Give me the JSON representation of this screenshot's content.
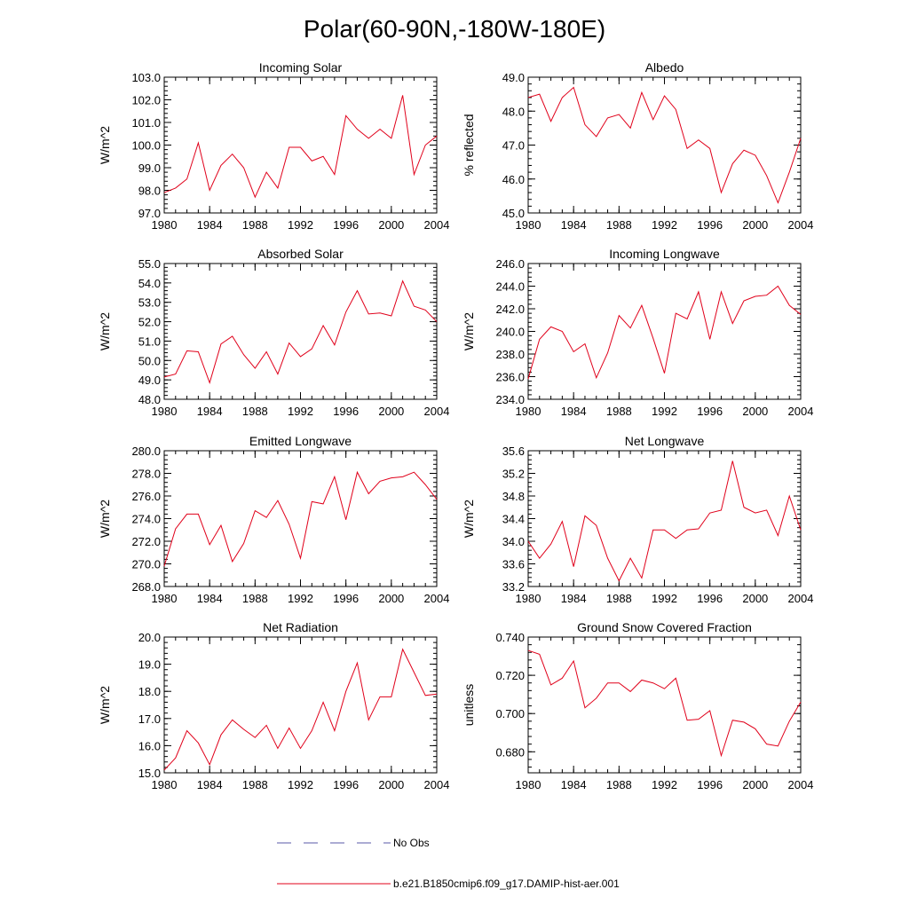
{
  "page": {
    "title": "Polar(60-90N,-180W-180E)"
  },
  "legend": {
    "entries": [
      {
        "label": "No Obs",
        "color": "#5a5aa8",
        "style": "dashed"
      },
      {
        "label": "b.e21.B1850cmip6.f09_g17.DAMIP-hist-aer.001",
        "color": "#e0001a",
        "style": "solid"
      }
    ]
  },
  "chart_data": [
    {
      "type": "line",
      "title": "Incoming Solar",
      "ylabel": "W/m^2",
      "xlim": [
        1980,
        2004
      ],
      "ylim": [
        97.0,
        103.0
      ],
      "xticks": [
        "1980",
        "1984",
        "1988",
        "1992",
        "1996",
        "2000",
        "2004"
      ],
      "yticks": [
        "97.0",
        "98.0",
        "99.0",
        "100.0",
        "101.0",
        "102.0",
        "103.0"
      ],
      "series": [
        {
          "color": "#e0001a",
          "x": [
            1980,
            1981,
            1982,
            1983,
            1984,
            1985,
            1986,
            1987,
            1988,
            1989,
            1990,
            1991,
            1992,
            1993,
            1994,
            1995,
            1996,
            1997,
            1998,
            1999,
            2000,
            2001,
            2002,
            2003,
            2004
          ],
          "values": [
            97.9,
            98.1,
            98.5,
            100.1,
            98.0,
            99.1,
            99.6,
            99.0,
            97.7,
            98.8,
            98.1,
            99.9,
            99.9,
            99.3,
            99.5,
            98.7,
            101.3,
            100.7,
            100.3,
            100.7,
            100.3,
            102.2,
            98.7,
            100.0,
            100.4
          ]
        }
      ]
    },
    {
      "type": "line",
      "title": "Albedo",
      "ylabel": "% reflected",
      "xlim": [
        1980,
        2004
      ],
      "ylim": [
        45.0,
        49.0
      ],
      "xticks": [
        "1980",
        "1984",
        "1988",
        "1992",
        "1996",
        "2000",
        "2004"
      ],
      "yticks": [
        "45.0",
        "46.0",
        "47.0",
        "48.0",
        "49.0"
      ],
      "series": [
        {
          "color": "#e0001a",
          "x": [
            1980,
            1981,
            1982,
            1983,
            1984,
            1985,
            1986,
            1987,
            1988,
            1989,
            1990,
            1991,
            1992,
            1993,
            1994,
            1995,
            1996,
            1997,
            1998,
            1999,
            2000,
            2001,
            2002,
            2003,
            2004
          ],
          "values": [
            48.4,
            48.5,
            47.7,
            48.4,
            48.7,
            47.6,
            47.25,
            47.8,
            47.9,
            47.5,
            48.55,
            47.75,
            48.45,
            48.05,
            46.9,
            47.15,
            46.9,
            45.6,
            46.45,
            46.85,
            46.7,
            46.1,
            45.3,
            46.2,
            47.2
          ]
        }
      ]
    },
    {
      "type": "line",
      "title": "Absorbed Solar",
      "ylabel": "W/m^2",
      "xlim": [
        1980,
        2004
      ],
      "ylim": [
        48.0,
        55.0
      ],
      "xticks": [
        "1980",
        "1984",
        "1988",
        "1992",
        "1996",
        "2000",
        "2004"
      ],
      "yticks": [
        "48.0",
        "49.0",
        "50.0",
        "51.0",
        "52.0",
        "53.0",
        "54.0",
        "55.0"
      ],
      "series": [
        {
          "color": "#e0001a",
          "x": [
            1980,
            1981,
            1982,
            1983,
            1984,
            1985,
            1986,
            1987,
            1988,
            1989,
            1990,
            1991,
            1992,
            1993,
            1994,
            1995,
            1996,
            1997,
            1998,
            1999,
            2000,
            2001,
            2002,
            2003,
            2004
          ],
          "values": [
            49.15,
            49.3,
            50.5,
            50.45,
            48.85,
            50.85,
            51.25,
            50.3,
            49.6,
            50.45,
            49.3,
            50.9,
            50.2,
            50.6,
            51.8,
            50.8,
            52.5,
            53.6,
            52.4,
            52.45,
            52.3,
            54.1,
            52.8,
            52.6,
            52.0
          ]
        }
      ]
    },
    {
      "type": "line",
      "title": "Incoming Longwave",
      "ylabel": "W/m^2",
      "xlim": [
        1980,
        2004
      ],
      "ylim": [
        234.0,
        246.0
      ],
      "xticks": [
        "1980",
        "1984",
        "1988",
        "1992",
        "1996",
        "2000",
        "2004"
      ],
      "yticks": [
        "234.0",
        "236.0",
        "238.0",
        "240.0",
        "242.0",
        "244.0",
        "246.0"
      ],
      "series": [
        {
          "color": "#e0001a",
          "x": [
            1980,
            1981,
            1982,
            1983,
            1984,
            1985,
            1986,
            1987,
            1988,
            1989,
            1990,
            1991,
            1992,
            1993,
            1994,
            1995,
            1996,
            1997,
            1998,
            1999,
            2000,
            2001,
            2002,
            2003,
            2004
          ],
          "values": [
            235.8,
            239.3,
            240.4,
            240.0,
            238.2,
            238.9,
            235.9,
            238.1,
            241.4,
            240.3,
            242.3,
            239.4,
            236.3,
            241.6,
            241.1,
            243.5,
            239.3,
            243.5,
            240.7,
            242.7,
            243.1,
            243.2,
            244.0,
            242.3,
            241.5
          ]
        }
      ]
    },
    {
      "type": "line",
      "title": "Emitted Longwave",
      "ylabel": "W/m^2",
      "xlim": [
        1980,
        2004
      ],
      "ylim": [
        268.0,
        280.0
      ],
      "xticks": [
        "1980",
        "1984",
        "1988",
        "1992",
        "1996",
        "2000",
        "2004"
      ],
      "yticks": [
        "268.0",
        "270.0",
        "272.0",
        "274.0",
        "276.0",
        "278.0",
        "280.0"
      ],
      "series": [
        {
          "color": "#e0001a",
          "x": [
            1980,
            1981,
            1982,
            1983,
            1984,
            1985,
            1986,
            1987,
            1988,
            1989,
            1990,
            1991,
            1992,
            1993,
            1994,
            1995,
            1996,
            1997,
            1998,
            1999,
            2000,
            2001,
            2002,
            2003,
            2004
          ],
          "values": [
            269.8,
            273.1,
            274.4,
            274.4,
            271.7,
            273.4,
            270.2,
            271.8,
            274.7,
            274.1,
            275.6,
            273.5,
            270.5,
            275.5,
            275.3,
            277.7,
            273.9,
            278.1,
            276.2,
            277.3,
            277.6,
            277.7,
            278.1,
            277.0,
            275.7
          ]
        }
      ]
    },
    {
      "type": "line",
      "title": "Net Longwave",
      "ylabel": "W/m^2",
      "xlim": [
        1980,
        2004
      ],
      "ylim": [
        33.2,
        35.6
      ],
      "xticks": [
        "1980",
        "1984",
        "1988",
        "1992",
        "1996",
        "2000",
        "2004"
      ],
      "yticks": [
        "33.2",
        "33.6",
        "34.0",
        "34.4",
        "34.8",
        "35.2",
        "35.6"
      ],
      "series": [
        {
          "color": "#e0001a",
          "x": [
            1980,
            1981,
            1982,
            1983,
            1984,
            1985,
            1986,
            1987,
            1988,
            1989,
            1990,
            1991,
            1992,
            1993,
            1994,
            1995,
            1996,
            1997,
            1998,
            1999,
            2000,
            2001,
            2002,
            2003,
            2004
          ],
          "values": [
            34.0,
            33.7,
            33.95,
            34.35,
            33.55,
            34.45,
            34.28,
            33.7,
            33.3,
            33.7,
            33.35,
            34.2,
            34.2,
            34.05,
            34.2,
            34.22,
            34.5,
            34.55,
            35.42,
            34.6,
            34.5,
            34.55,
            34.1,
            34.8,
            34.2
          ]
        }
      ]
    },
    {
      "type": "line",
      "title": "Net Radiation",
      "ylabel": "W/m^2",
      "xlim": [
        1980,
        2004
      ],
      "ylim": [
        15.0,
        20.0
      ],
      "xticks": [
        "1980",
        "1984",
        "1988",
        "1992",
        "1996",
        "2000",
        "2004"
      ],
      "yticks": [
        "15.0",
        "16.0",
        "17.0",
        "18.0",
        "19.0",
        "20.0"
      ],
      "series": [
        {
          "color": "#e0001a",
          "x": [
            1980,
            1981,
            1982,
            1983,
            1984,
            1985,
            1986,
            1987,
            1988,
            1989,
            1990,
            1991,
            1992,
            1993,
            1994,
            1995,
            1996,
            1997,
            1998,
            1999,
            2000,
            2001,
            2002,
            2003,
            2004
          ],
          "values": [
            15.1,
            15.55,
            16.55,
            16.1,
            15.3,
            16.4,
            16.95,
            16.6,
            16.3,
            16.75,
            15.9,
            16.65,
            15.9,
            16.55,
            17.6,
            16.55,
            18.0,
            19.05,
            16.95,
            17.8,
            17.8,
            19.55,
            18.7,
            17.85,
            17.9
          ]
        }
      ]
    },
    {
      "type": "line",
      "title": "Ground Snow Covered Fraction",
      "ylabel": "unitless",
      "xlim": [
        1980,
        2004
      ],
      "ylim": [
        0.669,
        0.74
      ],
      "xticks": [
        "1980",
        "1984",
        "1988",
        "1992",
        "1996",
        "2000",
        "2004"
      ],
      "yticks": [
        "0.680",
        "0.700",
        "0.720",
        "0.740"
      ],
      "series": [
        {
          "color": "#e0001a",
          "x": [
            1980,
            1981,
            1982,
            1983,
            1984,
            1985,
            1986,
            1987,
            1988,
            1989,
            1990,
            1991,
            1992,
            1993,
            1994,
            1995,
            1996,
            1997,
            1998,
            1999,
            2000,
            2001,
            2002,
            2003,
            2004
          ],
          "values": [
            0.733,
            0.731,
            0.715,
            0.7185,
            0.7275,
            0.703,
            0.708,
            0.716,
            0.716,
            0.7115,
            0.7175,
            0.716,
            0.713,
            0.7185,
            0.6965,
            0.697,
            0.7015,
            0.678,
            0.6965,
            0.6955,
            0.692,
            0.684,
            0.683,
            0.696,
            0.706
          ]
        }
      ]
    }
  ]
}
